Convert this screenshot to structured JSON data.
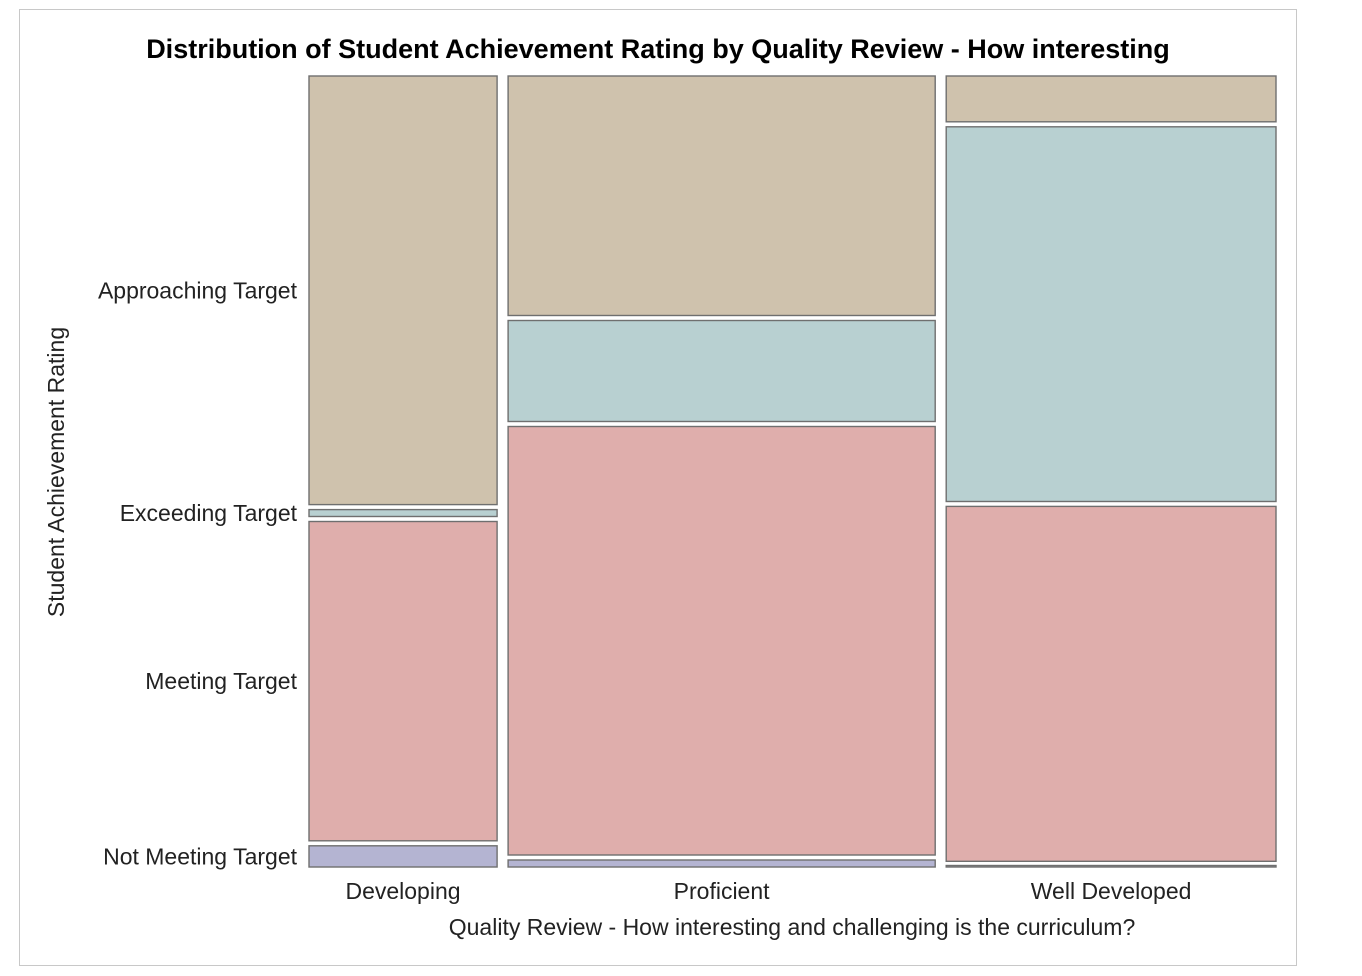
{
  "chart_data": {
    "type": "mosaic",
    "title": "Distribution of Student Achievement Rating by Quality Review - How interesting",
    "xlabel": "Quality Review - How interesting and challenging is the curriculum?",
    "ylabel": "Student Achievement Rating",
    "categories": [
      "Developing",
      "Proficient",
      "Well Developed"
    ],
    "category_widths": [
      0.199,
      0.452,
      0.349
    ],
    "levels": [
      "Not Meeting Target",
      "Meeting Target",
      "Exceeding Target",
      "Approaching Target"
    ],
    "y_ticks": [
      "Approaching Target",
      "Exceeding Target",
      "Meeting Target",
      "Not Meeting Target"
    ],
    "colors": {
      "Not Meeting Target": "#b4b4d2",
      "Meeting Target": "#dfaeac",
      "Exceeding Target": "#b8d0d1",
      "Approaching Target": "#cfc2ad"
    },
    "series": [
      {
        "name": "Not Meeting Target",
        "values": [
          0.03,
          0.012,
          0.004
        ]
      },
      {
        "name": "Meeting Target",
        "values": [
          0.41,
          0.548,
          0.455
        ]
      },
      {
        "name": "Exceeding Target",
        "values": [
          0.015,
          0.134,
          0.48
        ]
      },
      {
        "name": "Approaching Target",
        "values": [
          0.545,
          0.306,
          0.061
        ]
      }
    ]
  }
}
